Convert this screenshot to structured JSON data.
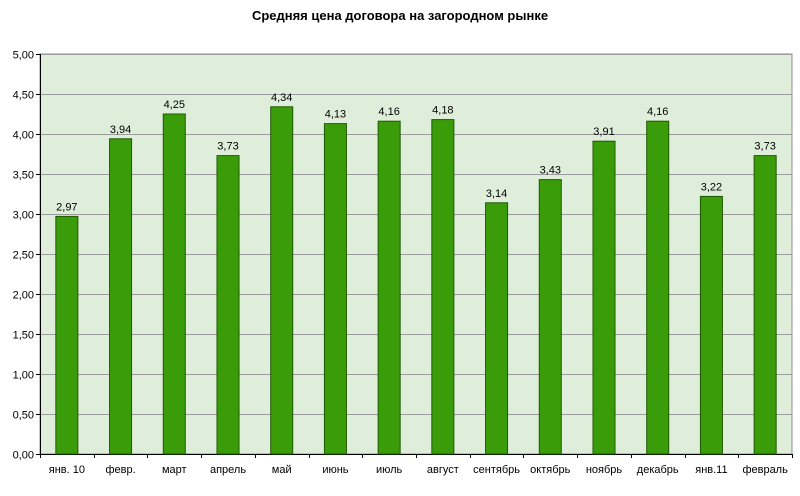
{
  "chart_data": {
    "type": "bar",
    "title": "Средняя цена договора на загородном рынке",
    "xlabel": "",
    "ylabel": "",
    "categories": [
      "янв. 10",
      "февр.",
      "март",
      "апрель",
      "май",
      "июнь",
      "июль",
      "август",
      "сентябрь",
      "октябрь",
      "ноябрь",
      "декабрь",
      "янв.11",
      "февраль"
    ],
    "values": [
      2.97,
      3.94,
      4.25,
      3.73,
      4.34,
      4.13,
      4.16,
      4.18,
      3.14,
      3.43,
      3.91,
      4.16,
      3.22,
      3.73
    ],
    "data_labels": [
      "2,97",
      "3,94",
      "4,25",
      "3,73",
      "4,34",
      "4,13",
      "4,16",
      "4,18",
      "3,14",
      "3,43",
      "3,91",
      "4,16",
      "3,22",
      "3,73"
    ],
    "ylim": [
      0,
      5
    ],
    "y_ticks": [
      0,
      0.5,
      1,
      1.5,
      2,
      2.5,
      3,
      3.5,
      4,
      4.5,
      5
    ],
    "y_tick_labels": [
      "0,00",
      "0,50",
      "1,00",
      "1,50",
      "2,00",
      "2,50",
      "3,00",
      "3,50",
      "4,00",
      "4,50",
      "5,00"
    ],
    "grid": true,
    "legend": "none",
    "colors": {
      "bar": "#3a9c08",
      "bar_stroke": "#1f5a02",
      "plot_bg": "#dfeedb",
      "grid": "#9c9c9c"
    }
  }
}
